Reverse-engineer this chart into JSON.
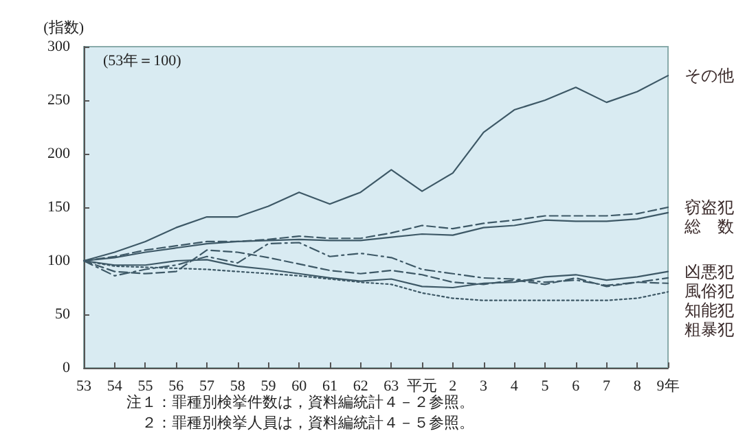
{
  "chart_data": {
    "type": "line",
    "ylabel": "(指数)",
    "categories": [
      "53",
      "54",
      "55",
      "56",
      "57",
      "58",
      "59",
      "60",
      "61",
      "62",
      "63",
      "平元",
      "2",
      "3",
      "4",
      "5",
      "6",
      "7",
      "8",
      "9年"
    ],
    "ylim": [
      0,
      300
    ],
    "yticks": [
      0,
      50,
      100,
      150,
      200,
      250,
      300
    ],
    "grid": false,
    "legend": false,
    "marker": "none",
    "series": [
      {
        "name": "その他",
        "color": "#3d5866",
        "line_style": "solid",
        "values": [
          100,
          108,
          118,
          131,
          141,
          141,
          151,
          164,
          153,
          164,
          185,
          165,
          182,
          220,
          241,
          250,
          262,
          248,
          258,
          273
        ]
      },
      {
        "name": "窃盗犯",
        "color": "#3d5866",
        "line_style": "dashed",
        "values": [
          100,
          104,
          110,
          114,
          118,
          118,
          120,
          123,
          121,
          121,
          126,
          133,
          130,
          135,
          138,
          142,
          142,
          142,
          144,
          150
        ]
      },
      {
        "name": "総　数",
        "color": "#3d5866",
        "line_style": "solid",
        "values": [
          100,
          103,
          108,
          112,
          116,
          118,
          119,
          120,
          119,
          119,
          122,
          125,
          124,
          131,
          133,
          138,
          137,
          137,
          139,
          145
        ]
      },
      {
        "name": "凶悪犯",
        "color": "#3d5866",
        "line_style": "solid",
        "values": [
          100,
          96,
          96,
          100,
          101,
          95,
          92,
          88,
          84,
          81,
          83,
          76,
          75,
          79,
          80,
          85,
          87,
          82,
          85,
          90
        ]
      },
      {
        "name": "風俗犯",
        "color": "#3d5866",
        "line_style": "dashdot",
        "values": [
          100,
          86,
          92,
          96,
          104,
          98,
          116,
          117,
          104,
          107,
          103,
          92,
          88,
          84,
          83,
          80,
          82,
          77,
          80,
          84
        ]
      },
      {
        "name": "知能犯",
        "color": "#3d5866",
        "line_style": "dashed",
        "values": [
          100,
          90,
          88,
          90,
          110,
          108,
          103,
          97,
          91,
          88,
          91,
          87,
          80,
          78,
          82,
          78,
          84,
          76,
          80,
          79
        ]
      },
      {
        "name": "粗暴犯",
        "color": "#3d5866",
        "line_style": "dotted",
        "values": [
          100,
          95,
          94,
          93,
          92,
          90,
          88,
          86,
          83,
          80,
          78,
          70,
          65,
          63,
          63,
          63,
          63,
          63,
          65,
          71
        ]
      }
    ],
    "annotations": [
      "(53年＝100)",
      "注１：罪種別検挙件数は，資料編統計４－２参照。",
      "　２：罪種別検挙人員は，資料編統計４－５参照。"
    ]
  }
}
